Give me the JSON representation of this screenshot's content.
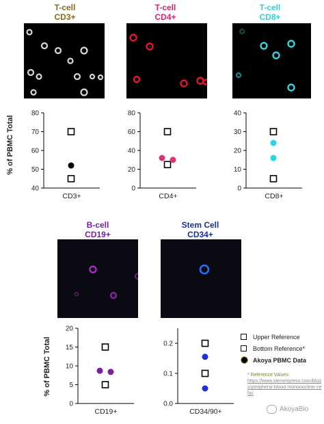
{
  "panels": [
    {
      "line1": "T-cell",
      "line2": "CD3+",
      "color": "#8b6914"
    },
    {
      "line1": "T-cell",
      "line2": "CD4+",
      "color": "#d6246e"
    },
    {
      "line1": "T-cell",
      "line2": "CD8+",
      "color": "#2fd0d6"
    },
    {
      "line1": "B-cell",
      "line2": "CD19+",
      "color": "#7a1fa2"
    },
    {
      "line1": "Stem Cell",
      "line2": "CD34+",
      "color": "#1a2d9c"
    }
  ],
  "chart_data": [
    {
      "type": "scatter",
      "xlabel": "CD3+",
      "ylabel": "% of PBMC Total",
      "ylim": [
        40,
        80
      ],
      "yticks": [
        40,
        50,
        60,
        70,
        80
      ],
      "series": [
        {
          "name": "Upper Reference",
          "marker": "open-square",
          "values": [
            70
          ]
        },
        {
          "name": "Bottom Reference*",
          "marker": "open-square",
          "values": [
            45
          ]
        },
        {
          "name": "Akoya PBMC Data",
          "marker": "dot",
          "color": "#000000",
          "values": [
            52
          ]
        }
      ]
    },
    {
      "type": "scatter",
      "xlabel": "CD4+",
      "ylabel": "",
      "ylim": [
        0,
        80
      ],
      "yticks": [
        0,
        20,
        40,
        60,
        80
      ],
      "series": [
        {
          "name": "Upper Reference",
          "marker": "open-square",
          "values": [
            60
          ]
        },
        {
          "name": "Bottom Reference*",
          "marker": "open-square",
          "values": [
            25
          ]
        },
        {
          "name": "Akoya PBMC Data",
          "marker": "dot",
          "color": "#e0307a",
          "values": [
            32,
            30
          ]
        }
      ]
    },
    {
      "type": "scatter",
      "xlabel": "CD8+",
      "ylabel": "",
      "ylim": [
        0,
        40
      ],
      "yticks": [
        0,
        10,
        20,
        30,
        40
      ],
      "series": [
        {
          "name": "Upper Reference",
          "marker": "open-square",
          "values": [
            30
          ]
        },
        {
          "name": "Bottom Reference*",
          "marker": "open-square",
          "values": [
            5
          ]
        },
        {
          "name": "Akoya PBMC Data",
          "marker": "dot",
          "color": "#29d3e6",
          "values": [
            24,
            16
          ]
        }
      ]
    },
    {
      "type": "scatter",
      "xlabel": "CD19+",
      "ylabel": "% of PBMC Total",
      "ylim": [
        0,
        20
      ],
      "yticks": [
        0,
        5,
        10,
        15,
        20
      ],
      "series": [
        {
          "name": "Upper Reference",
          "marker": "open-square",
          "values": [
            15
          ]
        },
        {
          "name": "Bottom Reference*",
          "marker": "open-square",
          "values": [
            5
          ]
        },
        {
          "name": "Akoya PBMC Data",
          "marker": "dot",
          "color": "#7a1fa2",
          "values": [
            8.7,
            8.4
          ]
        }
      ]
    },
    {
      "type": "scatter",
      "xlabel": "CD34/90+",
      "ylabel": "",
      "ylim": [
        0,
        0.25
      ],
      "yticks": [
        0.0,
        0.1,
        0.2
      ],
      "series": [
        {
          "name": "Upper Reference",
          "marker": "open-square",
          "values": [
            0.2
          ]
        },
        {
          "name": "Bottom Reference*",
          "marker": "open-square",
          "values": [
            0.1
          ]
        },
        {
          "name": "Akoya PBMC Data",
          "marker": "dot",
          "color": "#1f2fd6",
          "values": [
            0.155,
            0.05
          ]
        }
      ]
    }
  ],
  "legend": {
    "upper": "Upper Reference",
    "bottom": "Bottom Reference*",
    "akoya": "Akoya PBMC Data"
  },
  "reference_note": {
    "title": "* Reference Values:",
    "url": "https://www.stemexpress.com/blogs/peripheral-blood-mononuclear-cells/"
  },
  "watermark": "AkoyaBio"
}
